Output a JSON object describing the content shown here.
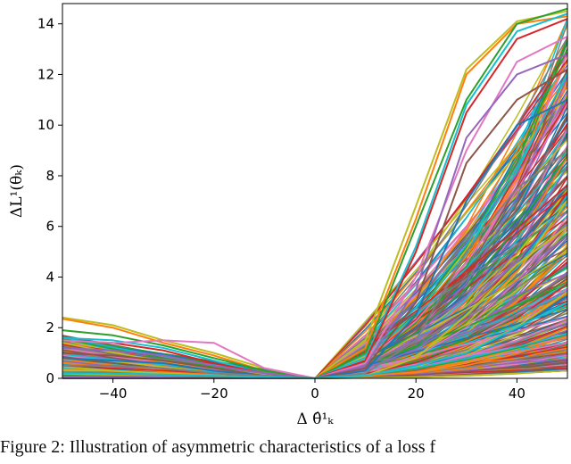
{
  "chart_data": {
    "type": "line",
    "xlabel": "Δ θ̂¹ₖ",
    "ylabel": "ΔL¹(θₖ)",
    "xlim": [
      -50,
      50
    ],
    "ylim": [
      0,
      14.8
    ],
    "x_ticks": [
      -40,
      -20,
      0,
      20,
      40
    ],
    "y_ticks": [
      0,
      2,
      4,
      6,
      8,
      10,
      12,
      14
    ],
    "grid": false,
    "x": [
      -50,
      -40,
      -30,
      -20,
      -10,
      0,
      10,
      20,
      30,
      40,
      50
    ],
    "series_note_count": 400,
    "series": [
      {
        "color": "#bcbd22",
        "values": [
          2.4,
          2.1,
          1.5,
          1.0,
          0.4,
          0,
          1.5,
          6.8,
          12.2,
          14.1,
          14.5
        ]
      },
      {
        "color": "#ff7f0e",
        "values": [
          2.35,
          2.0,
          1.4,
          0.9,
          0.3,
          0,
          1.2,
          6.3,
          12.0,
          14.0,
          14.3
        ]
      },
      {
        "color": "#2ca02c",
        "values": [
          1.9,
          1.7,
          1.3,
          0.8,
          0.3,
          0,
          1.0,
          6.0,
          11.0,
          14.0,
          14.6
        ]
      },
      {
        "color": "#17becf",
        "values": [
          1.6,
          1.5,
          1.2,
          0.7,
          0.2,
          0,
          0.8,
          5.2,
          10.8,
          13.7,
          14.4
        ]
      },
      {
        "color": "#d62728",
        "values": [
          1.5,
          1.4,
          1.1,
          0.6,
          0.2,
          0,
          0.7,
          5.0,
          10.5,
          13.4,
          14.2
        ]
      },
      {
        "color": "#e377c2",
        "values": [
          1.5,
          1.4,
          1.5,
          1.4,
          0.4,
          0,
          0.6,
          4.0,
          9.0,
          12.5,
          13.5
        ]
      },
      {
        "color": "#9467bd",
        "values": [
          1.2,
          1.1,
          0.9,
          0.5,
          0.2,
          0,
          0.5,
          3.5,
          9.5,
          12.0,
          12.8
        ]
      },
      {
        "color": "#8c564b",
        "values": [
          1.0,
          0.9,
          0.7,
          0.4,
          0.1,
          0,
          0.4,
          3.0,
          8.5,
          11.0,
          12.2
        ]
      },
      {
        "color": "#1f77b4",
        "values": [
          0.8,
          0.7,
          0.6,
          0.3,
          0.1,
          0,
          0.3,
          2.5,
          7.0,
          10.0,
          11.0
        ]
      },
      {
        "color": "#7f7f7f",
        "values": [
          0.5,
          0.5,
          0.4,
          0.2,
          0.1,
          0,
          0.2,
          1.5,
          5.0,
          7.5,
          9.0
        ]
      },
      {
        "color": "#bcbd22",
        "values": [
          0.3,
          0.3,
          0.2,
          0.1,
          0.05,
          0,
          0.1,
          0.8,
          2.5,
          4.5,
          6.0
        ]
      },
      {
        "color": "#17becf",
        "values": [
          0.2,
          0.2,
          0.15,
          0.1,
          0.05,
          0,
          0.1,
          0.5,
          1.0,
          2.0,
          3.0
        ]
      }
    ]
  },
  "caption": "Figure 2: Illustration of asymmetric characteristics of a loss f"
}
